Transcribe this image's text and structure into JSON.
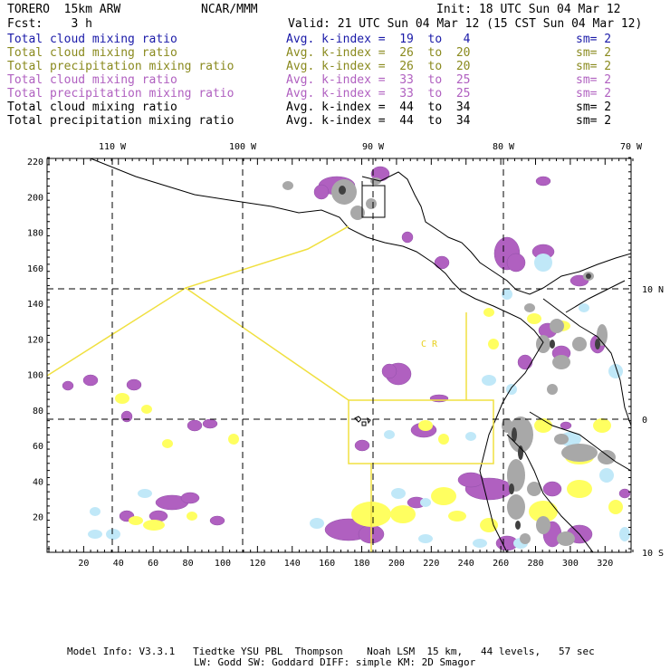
{
  "header": {
    "model": "TORERO  15km ARW",
    "org": "NCAR/MMM",
    "init": "Init: 18 UTC Sun 04 Mar 12",
    "fcst": "Fcst:    3 h",
    "valid": "Valid: 21 UTC Sun 04 Mar 12 (15 CST Sun 04 Mar 12)"
  },
  "legend": [
    {
      "field": "Total cloud mixing ratio",
      "kindex": "Avg. k-index =  19  to   4",
      "sm": "sm= 2",
      "color": "#1a1aa8"
    },
    {
      "field": "Total cloud mixing ratio",
      "kindex": "Avg. k-index =  26  to  20",
      "sm": "sm= 2",
      "color": "#8a8a1e"
    },
    {
      "field": "Total precipitation mixing ratio",
      "kindex": "Avg. k-index =  26  to  20",
      "sm": "sm= 2",
      "color": "#8a8a1e"
    },
    {
      "field": "Total cloud mixing ratio",
      "kindex": "Avg. k-index =  33  to  25",
      "sm": "sm= 2",
      "color": "#b060c0"
    },
    {
      "field": "Total precipitation mixing ratio",
      "kindex": "Avg. k-index =  33  to  25",
      "sm": "sm= 2",
      "color": "#b060c0"
    },
    {
      "field": "Total cloud mixing ratio",
      "kindex": "Avg. k-index =  44  to  34",
      "sm": "sm= 2",
      "color": "#000000"
    },
    {
      "field": "Total precipitation mixing ratio",
      "kindex": "Avg. k-index =  44  to  34",
      "sm": "sm= 2",
      "color": "#000000"
    }
  ],
  "map": {
    "lon_labels": [
      "110 W",
      "100 W",
      "90 W",
      "80 W",
      "70 W"
    ],
    "lat_labels": [
      "10 N",
      "0",
      "10 S"
    ],
    "x_ticks": [
      "20",
      "40",
      "60",
      "80",
      "100",
      "120",
      "140",
      "160",
      "180",
      "200",
      "220",
      "240",
      "260",
      "280",
      "300",
      "320"
    ],
    "y_ticks": [
      "220",
      "200",
      "180",
      "160",
      "140",
      "120",
      "100",
      "80",
      "60",
      "40",
      "20"
    ],
    "region_label": "C  R",
    "colors": {
      "yellow": "#ffff60",
      "purple": "#b060c0",
      "lightblue": "#c0e8f8",
      "gray": "#a8a8a8",
      "outline": "#f0e040"
    }
  },
  "footer": {
    "line1": "Model Info: V3.3.1   Tiedtke YSU PBL  Thompson    Noah LSM  15 km,   44 levels,   57 sec",
    "line2": "LW: Godd SW: Goddard DIFF: simple KM: 2D Smagor"
  }
}
